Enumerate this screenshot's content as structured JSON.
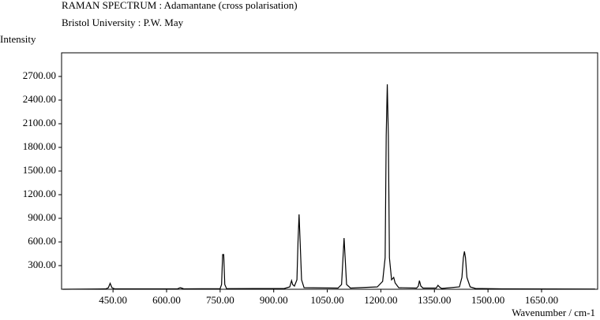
{
  "chart_data": {
    "type": "line",
    "title": "RAMAN SPECTRUM : Adamantane (cross polarisation)",
    "subtitle": "Bristol University : P.W. May",
    "y_label": "Intensity",
    "x_label": "Wavenumber / cm-1",
    "x": [
      310,
      430,
      437,
      442,
      447,
      455,
      630,
      638,
      642,
      648,
      750,
      754,
      757,
      760,
      763,
      768,
      930,
      945,
      950,
      953,
      958,
      965,
      968,
      971,
      974,
      978,
      985,
      1080,
      1090,
      1094,
      1097,
      1100,
      1104,
      1115,
      1190,
      1205,
      1212,
      1215,
      1218,
      1221,
      1224,
      1230,
      1236,
      1240,
      1250,
      1300,
      1305,
      1308,
      1312,
      1318,
      1355,
      1360,
      1364,
      1370,
      1420,
      1427,
      1431,
      1434,
      1437,
      1441,
      1450,
      1465,
      1550,
      1800
    ],
    "series": [
      {
        "name": null,
        "color": "#000000",
        "values": [
          0,
          5,
          20,
          75,
          20,
          5,
          5,
          20,
          15,
          5,
          8,
          60,
          440,
          440,
          60,
          8,
          10,
          30,
          110,
          60,
          40,
          120,
          600,
          950,
          600,
          120,
          20,
          15,
          60,
          400,
          650,
          400,
          60,
          15,
          30,
          100,
          400,
          1950,
          2600,
          1950,
          400,
          120,
          150,
          80,
          20,
          15,
          40,
          110,
          40,
          15,
          15,
          50,
          30,
          10,
          30,
          150,
          400,
          480,
          400,
          150,
          30,
          10,
          5,
          3
        ]
      }
    ],
    "xlim": [
      306,
      1807
    ],
    "ylim": [
      0,
      3000
    ],
    "xticks": [
      {
        "value": 450,
        "label": "450.00"
      },
      {
        "value": 600,
        "label": "600.00"
      },
      {
        "value": 750,
        "label": "750.00"
      },
      {
        "value": 900,
        "label": "900.00"
      },
      {
        "value": 1050,
        "label": "1050.00"
      },
      {
        "value": 1200,
        "label": "1200.00"
      },
      {
        "value": 1350,
        "label": "1350.00"
      },
      {
        "value": 1500,
        "label": "1500.00"
      },
      {
        "value": 1650,
        "label": "1650.00"
      }
    ],
    "yticks": [
      {
        "value": 300,
        "label": "300.00"
      },
      {
        "value": 600,
        "label": "600.00"
      },
      {
        "value": 900,
        "label": "900.00"
      },
      {
        "value": 1200,
        "label": "1200.00"
      },
      {
        "value": 1500,
        "label": "1500.00"
      },
      {
        "value": 1800,
        "label": "1800.00"
      },
      {
        "value": 2100,
        "label": "2100.00"
      },
      {
        "value": 2400,
        "label": "2400.00"
      },
      {
        "value": 2700,
        "label": "2700.00"
      }
    ]
  }
}
